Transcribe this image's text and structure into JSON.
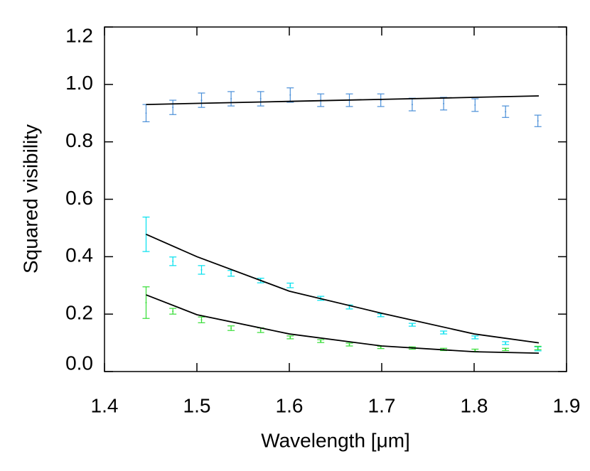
{
  "chart_data": {
    "type": "errorbar",
    "x_label": "Wavelength [μm]",
    "y_label": "Squared visibility",
    "xlim": [
      1.4,
      1.9
    ],
    "xticks": [
      1.4,
      1.5,
      1.6,
      1.7,
      1.8,
      1.9
    ],
    "ylim": [
      0,
      1.2
    ],
    "yticks": [
      {
        "value": 0,
        "label": "0.0"
      },
      0.2,
      0.4,
      0.6,
      0.8,
      {
        "value": 1,
        "label": "1.0"
      },
      1.2
    ],
    "x": [
      1.445,
      1.474,
      1.505,
      1.537,
      1.569,
      1.601,
      1.634,
      1.665,
      1.699,
      1.733,
      1.767,
      1.801,
      1.834,
      1.869
    ],
    "series": [
      {
        "color": "#4a8fd8",
        "values": [
          0.9,
          0.92,
          0.945,
          0.95,
          0.95,
          0.963,
          0.945,
          0.945,
          0.945,
          0.93,
          0.933,
          0.928,
          0.905,
          0.873
        ],
        "errors": [
          0.03,
          0.025,
          0.025,
          0.025,
          0.025,
          0.025,
          0.022,
          0.022,
          0.022,
          0.022,
          0.022,
          0.022,
          0.02,
          0.02
        ]
      },
      {
        "color": "#00e0ee",
        "values": [
          0.478,
          0.384,
          0.354,
          0.342,
          0.317,
          0.3,
          0.255,
          0.225,
          0.196,
          0.163,
          0.136,
          0.119,
          0.099,
          0.079
        ],
        "errors": [
          0.06,
          0.015,
          0.015,
          0.01,
          0.008,
          0.008,
          0.007,
          0.007,
          0.005,
          0.005,
          0.005,
          0.005,
          0.005,
          0.007
        ]
      },
      {
        "color": "#33dd33",
        "values": [
          0.24,
          0.21,
          0.18,
          0.151,
          0.144,
          0.119,
          0.106,
          0.094,
          0.084,
          0.082,
          0.077,
          0.074,
          0.077,
          0.082
        ],
        "errors": [
          0.055,
          0.01,
          0.01,
          0.008,
          0.008,
          0.005,
          0.005,
          0.005,
          0.004,
          0.004,
          0.004,
          0.004,
          0.004,
          0.006
        ]
      }
    ],
    "model_x": [
      1.445,
      1.5,
      1.6,
      1.7,
      1.8,
      1.87
    ],
    "models": [
      {
        "color": "#000000",
        "values": [
          0.93,
          0.934,
          0.941,
          0.948,
          0.955,
          0.96
        ]
      },
      {
        "color": "#000000",
        "values": [
          0.478,
          0.4,
          0.28,
          0.203,
          0.131,
          0.1
        ]
      },
      {
        "color": "#000000",
        "values": [
          0.267,
          0.198,
          0.131,
          0.089,
          0.069,
          0.064
        ]
      }
    ]
  }
}
